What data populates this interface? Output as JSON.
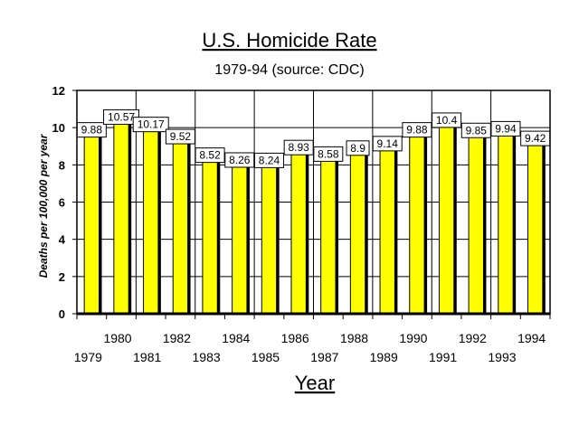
{
  "chart_data": {
    "type": "bar",
    "title": "U.S. Homicide Rate",
    "subtitle": "1979-94 (source: CDC)",
    "xlabel": "Year",
    "ylabel": "Deaths per 100,000 per year",
    "categories": [
      "1979",
      "1980",
      "1981",
      "1982",
      "1983",
      "1984",
      "1985",
      "1986",
      "1987",
      "1988",
      "1989",
      "1990",
      "1991",
      "1992",
      "1993",
      "1994"
    ],
    "values": [
      9.88,
      10.57,
      10.17,
      9.52,
      8.52,
      8.26,
      8.24,
      8.93,
      8.58,
      8.9,
      9.14,
      9.88,
      10.4,
      9.85,
      9.94,
      9.42
    ],
    "data_labels": [
      "9.88",
      "10.57",
      "10.17",
      "9.52",
      "8.52",
      "8.26",
      "8.24",
      "8.93",
      "8.58",
      "8.9",
      "9.14",
      "9.88",
      "10.4",
      "9.85",
      "9.94",
      "9.42"
    ],
    "ylim": [
      0,
      12
    ],
    "yticks": [
      "0",
      "2",
      "4",
      "6",
      "8",
      "10",
      "12"
    ],
    "grid": true,
    "bar_color": "#ffff00",
    "shadow_color": "#000000",
    "legend": "none"
  }
}
